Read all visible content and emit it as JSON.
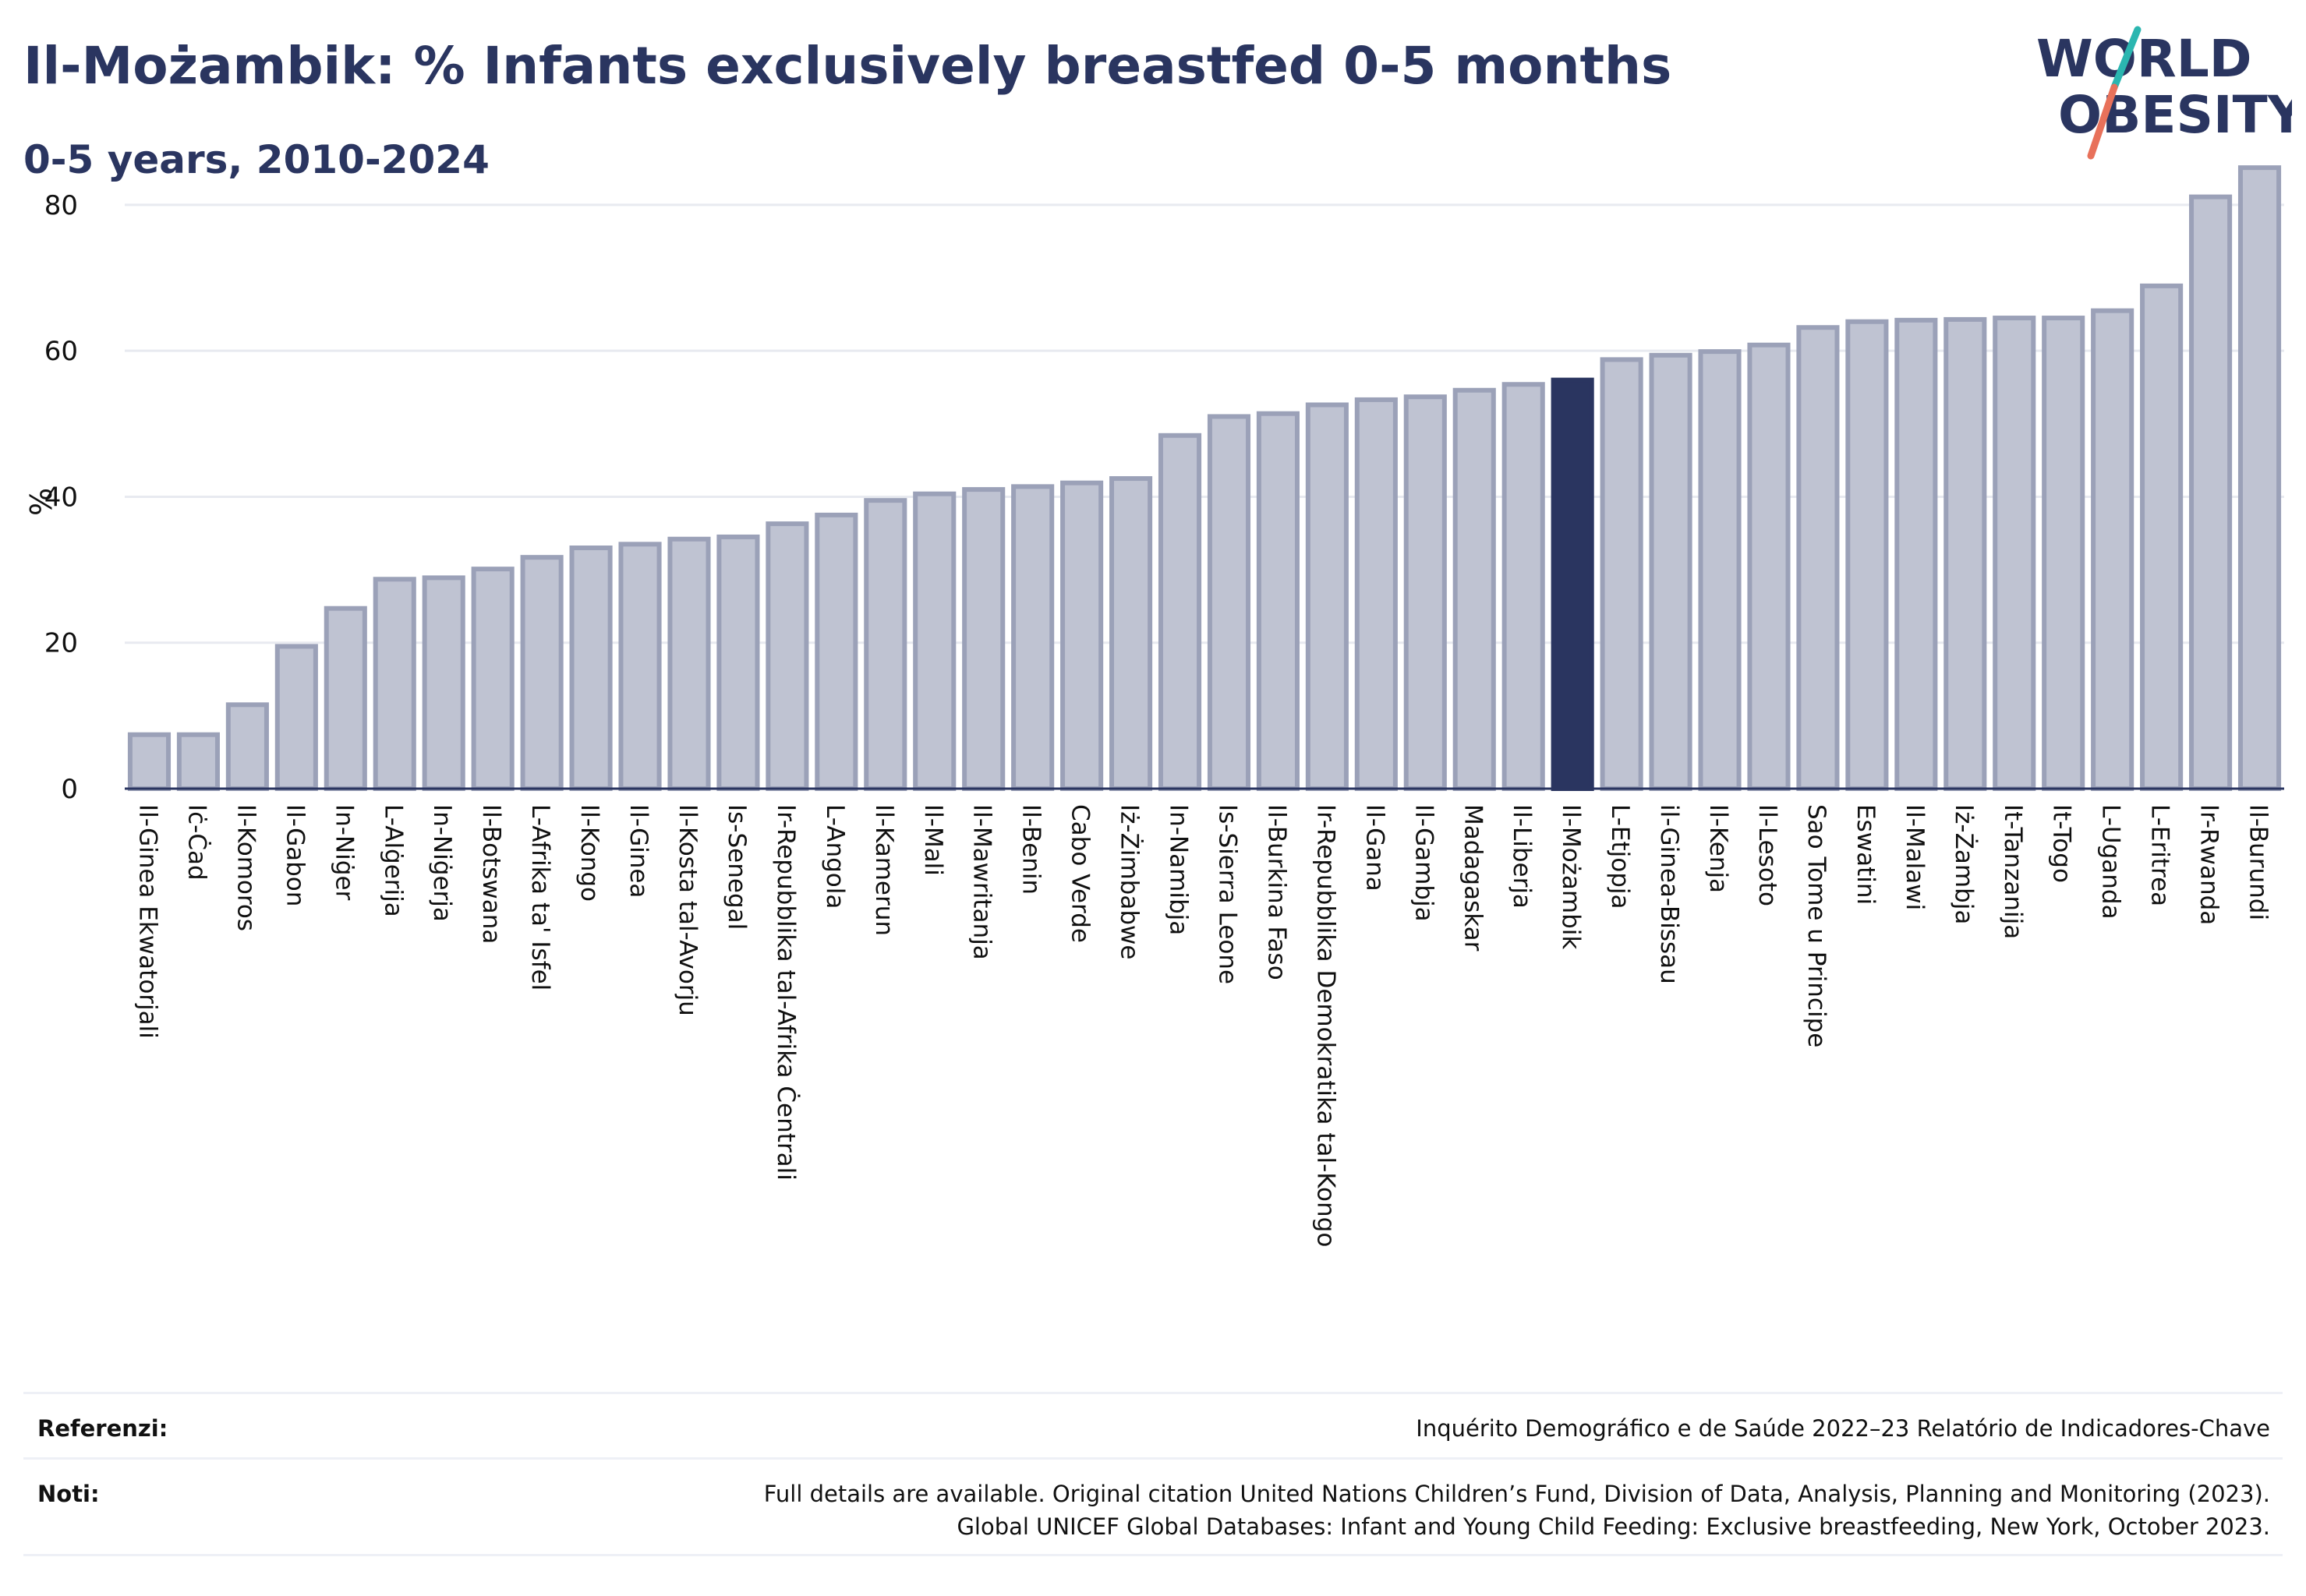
{
  "header": {
    "title": "Il-Możambik: % Infants exclusively breastfed 0-5 months",
    "subtitle": "0-5 years, 2010-2024"
  },
  "logo": {
    "line1": "WORLD",
    "line2": "OBESITY",
    "colors": {
      "text": "#2a3560",
      "slash_teal": "#2bb6b0",
      "slash_coral": "#e8715a"
    }
  },
  "colors": {
    "bar_default_fill": "#bfc3d2",
    "bar_default_stroke": "#9ba1b8",
    "bar_highlight": "#2a3560",
    "gridline": "#e8eaf0",
    "axis_text": "#111111"
  },
  "chart_data": {
    "type": "bar",
    "ylabel": "%",
    "ylim": [
      0,
      88
    ],
    "yticks": [
      0,
      20,
      40,
      60,
      80
    ],
    "grid": true,
    "highlight": "Il-Możambik",
    "categories": [
      "Il-Ginea Ekwatorjali",
      "Iċ-Ċad",
      "Il-Komoros",
      "Il-Gabon",
      "In-Niġer",
      "L-Alġerija",
      "In-Niġerja",
      "Il-Botswana",
      "L-Afrika ta' Isfel",
      "Il-Kongo",
      "Il-Ginea",
      "Il-Kosta tal-Avorju",
      "Is-Senegal",
      "Ir-Repubblika tal-Afrika Ċentrali",
      "L-Angola",
      "Il-Kamerun",
      "Il-Mali",
      "Il-Mawritanja",
      "Il-Benin",
      "Cabo Verde",
      "Iż-Żimbabwe",
      "In-Namibja",
      "Is-Sierra Leone",
      "Il-Burkina Faso",
      "Ir-Repubblika Demokratika tal-Kongo",
      "Il-Gana",
      "Il-Gambja",
      "Madagaskar",
      "Il-Liberja",
      "Il-Możambik",
      "L-Etjopja",
      "il-Ginea-Bissau",
      "Il-Kenja",
      "Il-Lesoto",
      "Sao Tome u Principe",
      "Eswatini",
      "Il-Malawi",
      "Iż-Żambja",
      "It-Tanzanija",
      "It-Togo",
      "L-Uganda",
      "L-Eritrea",
      "Ir-Rwanda",
      "Il-Burundi"
    ],
    "values": [
      7.4,
      7.4,
      11.5,
      19.5,
      24.7,
      28.7,
      28.9,
      30.1,
      31.7,
      33.0,
      33.5,
      34.2,
      34.5,
      36.3,
      37.5,
      39.5,
      40.4,
      41.0,
      41.4,
      41.9,
      42.5,
      48.4,
      51.0,
      51.4,
      52.6,
      53.3,
      53.7,
      54.6,
      55.4,
      56.0,
      58.8,
      59.4,
      59.9,
      60.8,
      63.2,
      64.0,
      64.2,
      64.3,
      64.5,
      64.5,
      65.5,
      68.9,
      81.1,
      85.1
    ]
  },
  "footer": {
    "references_label": "Referenzi:",
    "references_text": "Inquérito Demográfico e de Saúde 2022–23 Relatório de Indicadores-Chave",
    "notes_label": "Noti:",
    "notes_line1": "Full details are available. Original citation United Nations Children’s Fund, Division of Data, Analysis, Planning and Monitoring (2023).",
    "notes_line2": "Global UNICEF Global Databases: Infant and Young Child Feeding: Exclusive breastfeeding, New York, October 2023."
  }
}
